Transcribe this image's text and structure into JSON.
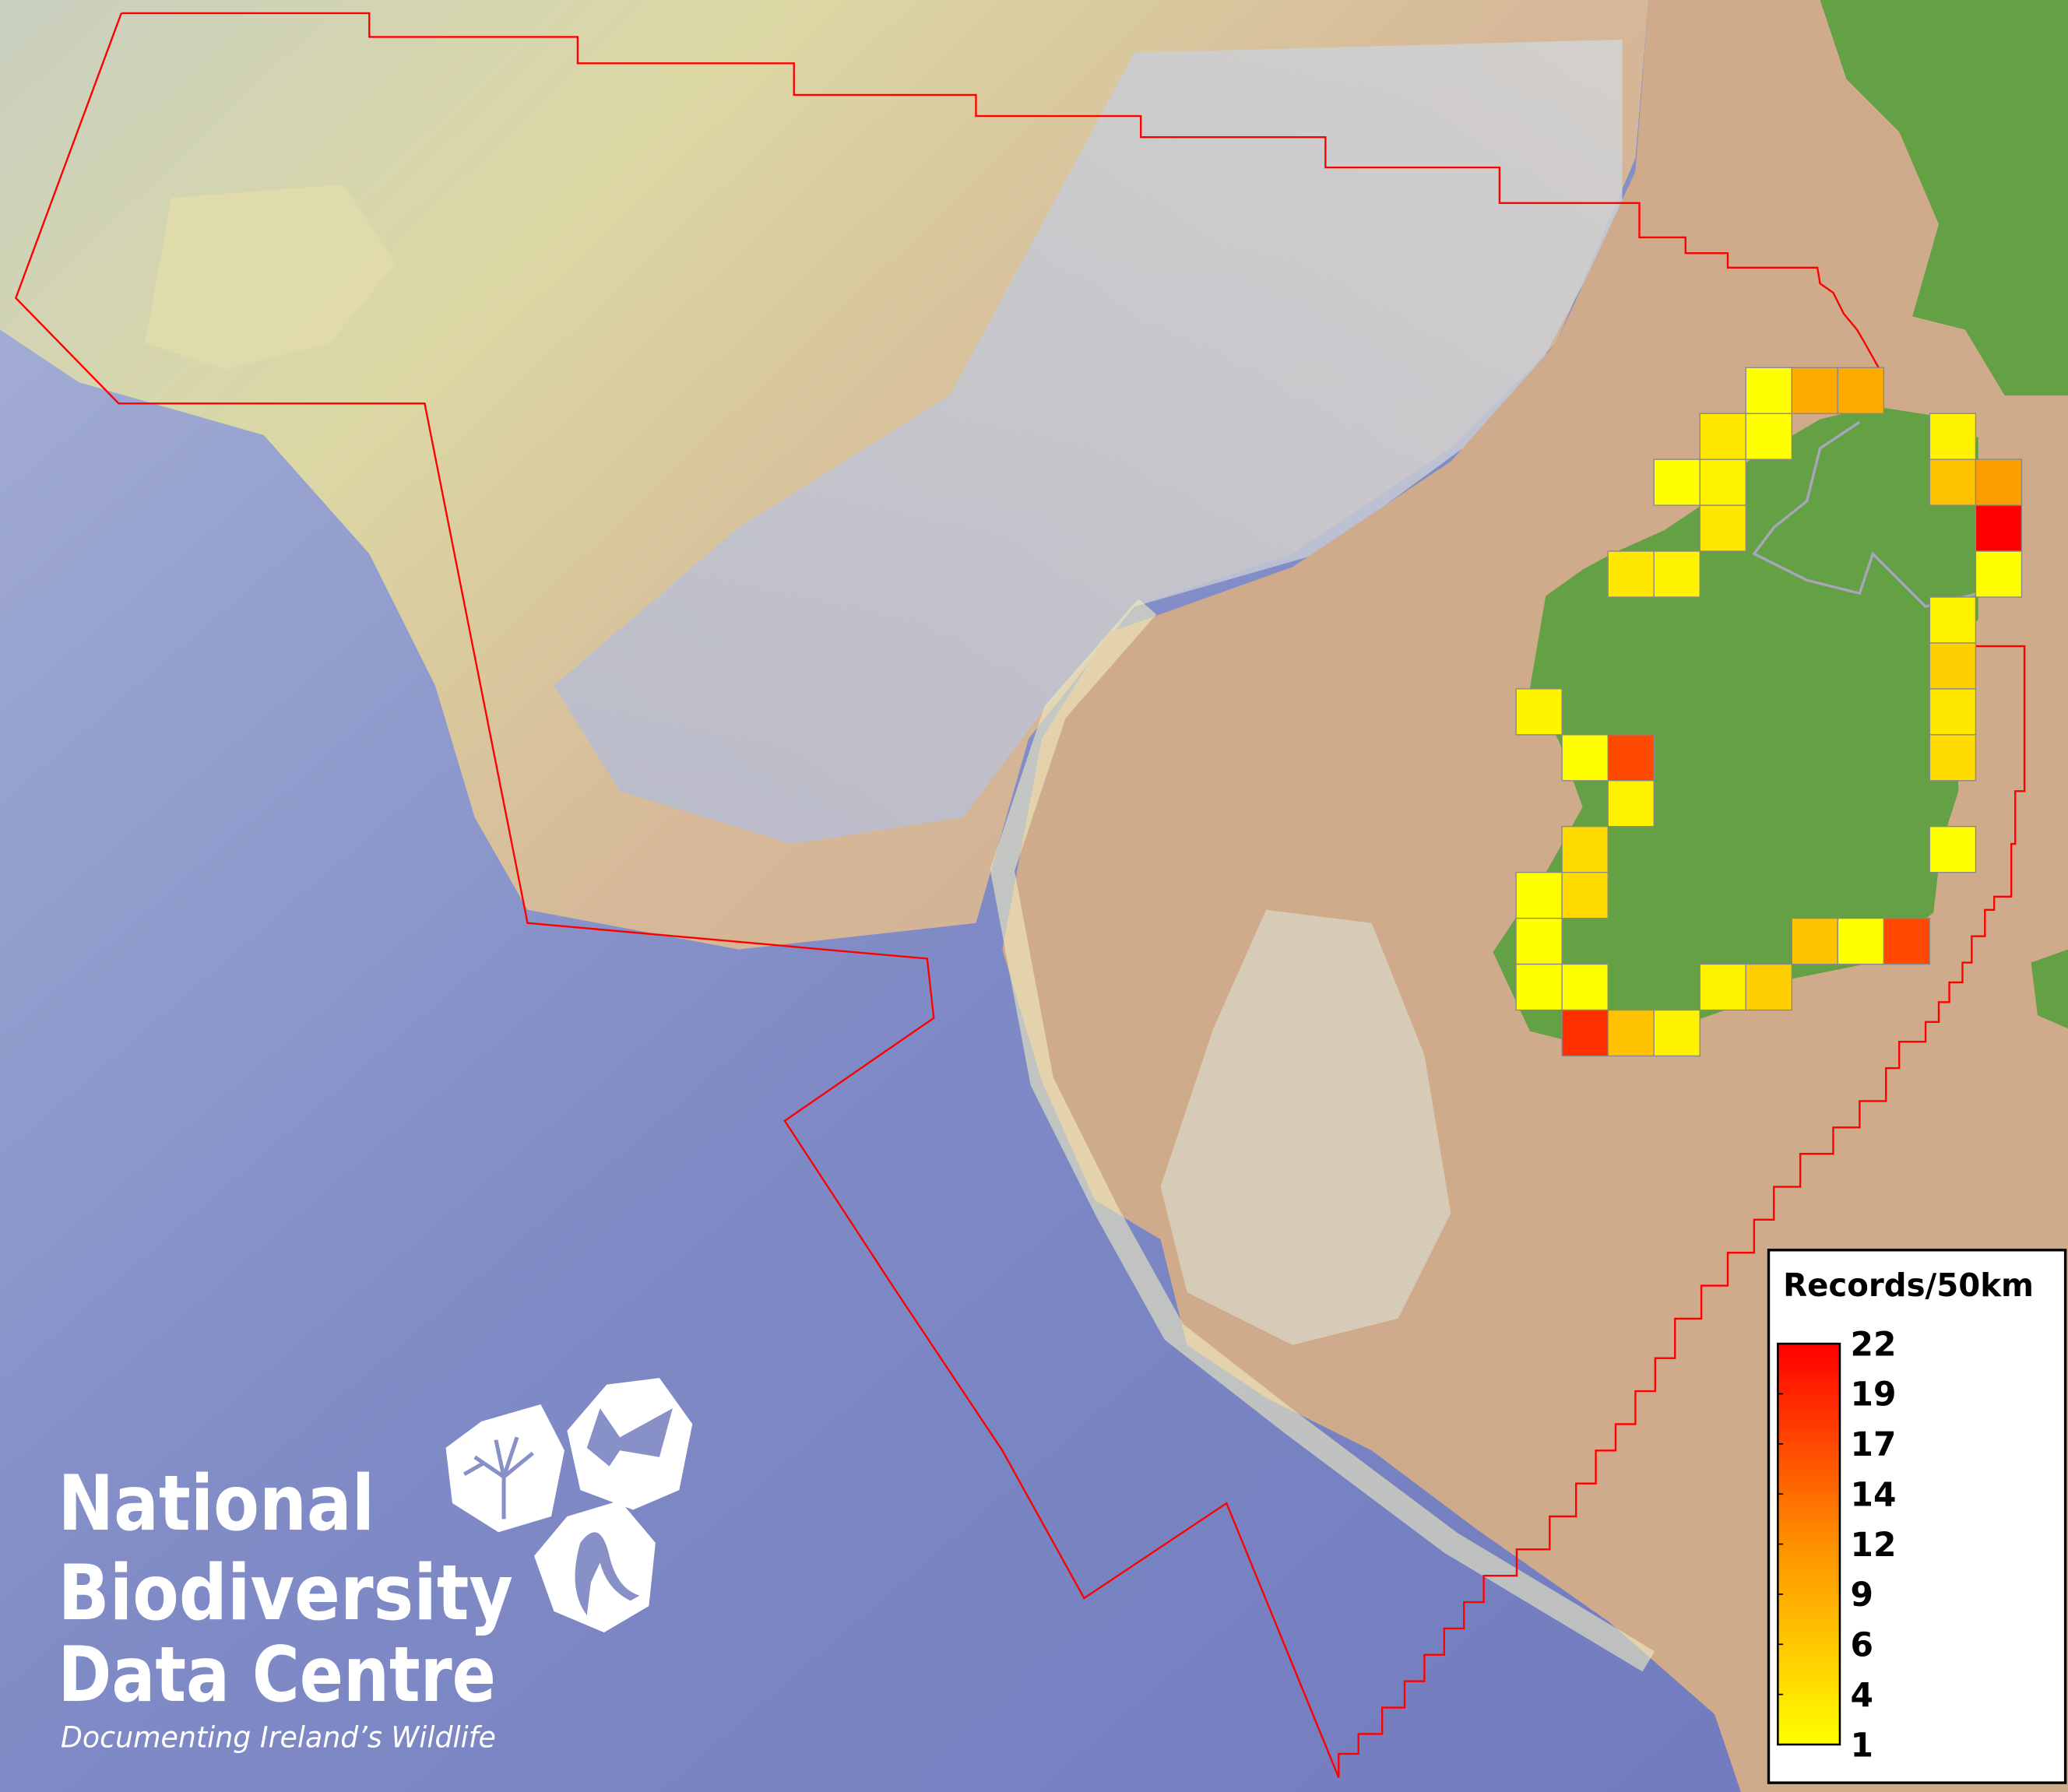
{
  "logo": {
    "line1": "National",
    "line2": "Biodiversity",
    "line3": "Data Centre",
    "tagline": "Documenting Ireland’s Wildlife"
  },
  "legend": {
    "title": "Records/50km",
    "ticks": [
      "22",
      "19",
      "17",
      "14",
      "12",
      "9",
      "6",
      "4",
      "1"
    ],
    "min": 1,
    "max": 22,
    "color_low": "#ffff00",
    "color_high": "#ff0000"
  },
  "colors": {
    "boundary": "#ff0000",
    "land": "#64a044",
    "cell_border": "#888888"
  },
  "grid_cells_50km": [
    {
      "col": 5,
      "row": 0,
      "value": 1
    },
    {
      "col": 6,
      "row": 0,
      "value": 8
    },
    {
      "col": 7,
      "row": 0,
      "value": 8
    },
    {
      "col": 4,
      "row": 1,
      "value": 3
    },
    {
      "col": 5,
      "row": 1,
      "value": 1
    },
    {
      "col": 9,
      "row": 1,
      "value": 2
    },
    {
      "col": 3,
      "row": 2,
      "value": 1
    },
    {
      "col": 4,
      "row": 2,
      "value": 2
    },
    {
      "col": 9,
      "row": 2,
      "value": 6
    },
    {
      "col": 10,
      "row": 2,
      "value": 9
    },
    {
      "col": 4,
      "row": 3,
      "value": 3
    },
    {
      "col": 10,
      "row": 3,
      "value": 22
    },
    {
      "col": 2,
      "row": 4,
      "value": 3
    },
    {
      "col": 3,
      "row": 4,
      "value": 2
    },
    {
      "col": 10,
      "row": 4,
      "value": 1
    },
    {
      "col": 9,
      "row": 5,
      "value": 2
    },
    {
      "col": 9,
      "row": 6,
      "value": 5
    },
    {
      "col": 0,
      "row": 7,
      "value": 2
    },
    {
      "col": 9,
      "row": 7,
      "value": 3
    },
    {
      "col": 1,
      "row": 8,
      "value": 1
    },
    {
      "col": 2,
      "row": 8,
      "value": 16
    },
    {
      "col": 9,
      "row": 8,
      "value": 4
    },
    {
      "col": 2,
      "row": 9,
      "value": 2
    },
    {
      "col": 1,
      "row": 10,
      "value": 4
    },
    {
      "col": 9,
      "row": 10,
      "value": 1
    },
    {
      "col": 0,
      "row": 11,
      "value": 1
    },
    {
      "col": 1,
      "row": 11,
      "value": 4
    },
    {
      "col": 0,
      "row": 12,
      "value": 1
    },
    {
      "col": 6,
      "row": 12,
      "value": 6
    },
    {
      "col": 7,
      "row": 12,
      "value": 1
    },
    {
      "col": 8,
      "row": 12,
      "value": 16
    },
    {
      "col": 0,
      "row": 13,
      "value": 1
    },
    {
      "col": 1,
      "row": 13,
      "value": 1
    },
    {
      "col": 4,
      "row": 13,
      "value": 2
    },
    {
      "col": 5,
      "row": 13,
      "value": 5
    },
    {
      "col": 1,
      "row": 14,
      "value": 18
    },
    {
      "col": 2,
      "row": 14,
      "value": 6
    },
    {
      "col": 3,
      "row": 14,
      "value": 2
    }
  ]
}
